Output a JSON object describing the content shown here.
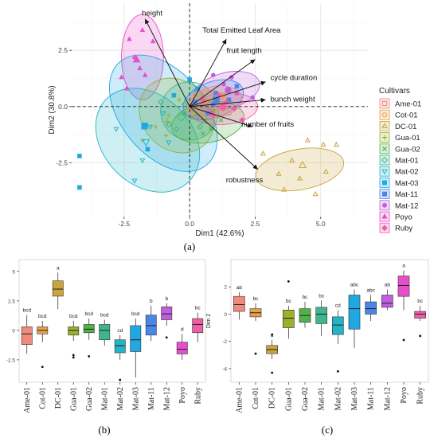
{
  "chart_data": [
    {
      "panel_label": "(a)",
      "type": "scatter",
      "title": "",
      "xlabel": "Dim1 (42.6%)",
      "ylabel": "Dim2 (30.8%)",
      "xlim": [
        -4.5,
        6.8
      ],
      "ylim": [
        -4.9,
        4.6
      ],
      "xticks": [
        -2.5,
        0.0,
        2.5,
        5.0
      ],
      "yticks": [
        -2.5,
        0.0,
        2.5
      ],
      "grid": true,
      "legend": {
        "title": "Cultivars",
        "position": "right"
      },
      "cultivars": [
        {
          "name": "Ame-01",
          "color": "#f08a7e",
          "marker": "square-open",
          "points": [
            [
              0.5,
              0.3
            ],
            [
              1.8,
              0.6
            ],
            [
              0.9,
              -0.2
            ],
            [
              1.2,
              0.4
            ],
            [
              0.3,
              0.8
            ],
            [
              1.5,
              -0.3
            ]
          ]
        },
        {
          "name": "Cot-01",
          "color": "#e8a04a",
          "marker": "circle-open",
          "points": [
            [
              0.6,
              0.2
            ],
            [
              0.2,
              0.5
            ],
            [
              1.1,
              -0.1
            ],
            [
              0.4,
              -0.3
            ],
            [
              0.9,
              0.3
            ],
            [
              1.3,
              0.5
            ]
          ]
        },
        {
          "name": "DC-01",
          "color": "#c9a53b",
          "marker": "triangle-open",
          "points": [
            [
              3.9,
              -2.4
            ],
            [
              4.5,
              -1.5
            ],
            [
              5.2,
              -2.9
            ],
            [
              4.2,
              -3.2
            ],
            [
              3.4,
              -3.0
            ],
            [
              5.1,
              -1.7
            ],
            [
              4.8,
              -3.9
            ],
            [
              2.8,
              -2.1
            ],
            [
              5.6,
              -1.7
            ],
            [
              3.6,
              -3.7
            ]
          ]
        },
        {
          "name": "Gua-01",
          "color": "#9cb02e",
          "marker": "plus",
          "points": [
            [
              -1.8,
              -1.5
            ],
            [
              -0.8,
              -0.4
            ],
            [
              -1.3,
              -0.9
            ],
            [
              -0.4,
              0.3
            ],
            [
              0.1,
              -0.2
            ],
            [
              -0.9,
              -1.3
            ]
          ]
        },
        {
          "name": "Gua-02",
          "color": "#52b24a",
          "marker": "x",
          "points": [
            [
              0.8,
              -1.0
            ],
            [
              0.1,
              -0.5
            ],
            [
              1.2,
              -0.6
            ],
            [
              0.5,
              -1.2
            ],
            [
              -0.2,
              -0.3
            ],
            [
              0.9,
              -0.2
            ]
          ]
        },
        {
          "name": "Mat-01",
          "color": "#3fb58e",
          "marker": "diamond-open",
          "points": [
            [
              -0.8,
              -0.8
            ],
            [
              -1.1,
              0.2
            ],
            [
              0.3,
              -0.4
            ],
            [
              -0.5,
              -1.0
            ],
            [
              -0.2,
              0.1
            ],
            [
              0.4,
              -0.9
            ]
          ]
        },
        {
          "name": "Mat-02",
          "color": "#22b5c9",
          "marker": "triangle-down-open",
          "points": [
            [
              -2.1,
              -3.3
            ],
            [
              -1.5,
              -0.9
            ],
            [
              -2.8,
              -1.0
            ],
            [
              -1.0,
              -0.3
            ],
            [
              -0.8,
              -1.6
            ],
            [
              -1.8,
              -2.4
            ]
          ]
        },
        {
          "name": "Mat-03",
          "color": "#20a8e2",
          "marker": "square",
          "points": [
            [
              -4.2,
              -2.2
            ],
            [
              -4.2,
              -3.6
            ],
            [
              0.0,
              1.2
            ],
            [
              0.3,
              0.8
            ],
            [
              -0.6,
              0.5
            ],
            [
              -1.6,
              -1.9
            ]
          ]
        },
        {
          "name": "Mat-11",
          "color": "#4a86e8",
          "marker": "square",
          "points": [
            [
              1.0,
              0.6
            ],
            [
              0.7,
              -0.3
            ],
            [
              1.5,
              0.3
            ],
            [
              0.2,
              0.2
            ],
            [
              1.8,
              0.9
            ],
            [
              0.9,
              0.1
            ]
          ]
        },
        {
          "name": "Mat-12",
          "color": "#c05ee0",
          "marker": "circle",
          "points": [
            [
              1.3,
              1.0
            ],
            [
              0.9,
              1.4
            ],
            [
              1.8,
              0.6
            ],
            [
              2.4,
              0.4
            ],
            [
              0.8,
              -0.3
            ],
            [
              1.6,
              1.3
            ]
          ]
        },
        {
          "name": "Poyo",
          "color": "#e64fc9",
          "marker": "triangle",
          "points": [
            [
              -2.3,
              3.0
            ],
            [
              -1.7,
              1.4
            ],
            [
              -2.1,
              2.2
            ],
            [
              -1.4,
              2.9
            ],
            [
              -2.6,
              1.3
            ],
            [
              -2.4,
              0.8
            ],
            [
              -1.8,
              3.4
            ],
            [
              -1.9,
              1.7
            ]
          ]
        },
        {
          "name": "Ruby",
          "color": "#ef5fa8",
          "marker": "diamond",
          "points": [
            [
              1.4,
              0.2
            ],
            [
              0.9,
              -0.4
            ],
            [
              2.0,
              -0.6
            ],
            [
              1.1,
              0.5
            ],
            [
              0.5,
              0.3
            ],
            [
              1.7,
              -0.1
            ]
          ]
        }
      ],
      "ellipses": [
        {
          "cultivar": "Poyo",
          "cx": -1.8,
          "cy": 2.2,
          "rx": 0.8,
          "ry": 1.9,
          "angle": 0
        },
        {
          "cultivar": "DC-01",
          "cx": 4.2,
          "cy": -2.8,
          "rx": 1.7,
          "ry": 0.9,
          "angle": -10
        },
        {
          "cultivar": "Mat-02",
          "cx": -1.6,
          "cy": -1.5,
          "rx": 1.7,
          "ry": 2.6,
          "angle": -45
        },
        {
          "cultivar": "Mat-03",
          "cx": -1.0,
          "cy": -0.3,
          "rx": 1.6,
          "ry": 3.0,
          "angle": -40
        },
        {
          "cultivar": "Gua-01",
          "cx": -0.5,
          "cy": -0.4,
          "rx": 1.3,
          "ry": 1.8,
          "angle": -45
        },
        {
          "cultivar": "Mat-01",
          "cx": 0.0,
          "cy": -0.2,
          "rx": 1.1,
          "ry": 1.3,
          "angle": -40
        },
        {
          "cultivar": "Gua-02",
          "cx": 0.7,
          "cy": -0.7,
          "rx": 1.4,
          "ry": 0.9,
          "angle": -10
        },
        {
          "cultivar": "Mat-12",
          "cx": 1.4,
          "cy": 0.7,
          "rx": 1.3,
          "ry": 0.8,
          "angle": -15
        },
        {
          "cultivar": "Ruby",
          "cx": 1.3,
          "cy": -0.1,
          "rx": 1.3,
          "ry": 0.7,
          "angle": -5
        },
        {
          "cultivar": "Mat-11",
          "cx": 0.9,
          "cy": 0.3,
          "rx": 1.2,
          "ry": 0.8,
          "angle": -20
        },
        {
          "cultivar": "Ame-01",
          "cx": 1.0,
          "cy": 0.2,
          "rx": 1.0,
          "ry": 0.7,
          "angle": -10
        },
        {
          "cultivar": "Cot-01",
          "cx": 0.7,
          "cy": 0.1,
          "rx": 0.8,
          "ry": 0.6,
          "angle": -10
        }
      ],
      "vectors": [
        {
          "label": "height",
          "x": -1.7,
          "y": 3.9
        },
        {
          "label": "Total Emitted Leaf Area",
          "x": 1.4,
          "y": 3.0
        },
        {
          "label": "fruit length",
          "x": 2.5,
          "y": 2.1
        },
        {
          "label": "cycle duration",
          "x": 2.9,
          "y": 1.1
        },
        {
          "label": "bunch weight",
          "x": 2.9,
          "y": 0.3
        },
        {
          "label": "number of fruits",
          "x": 2.4,
          "y": -0.9
        },
        {
          "label": "robustness",
          "x": 2.6,
          "y": -2.8
        }
      ]
    },
    {
      "panel_label": "(b)",
      "type": "box",
      "ylabel": "Dim 1",
      "ylim": [
        -4.4,
        6.0
      ],
      "yticks": [
        -2.5,
        0.0,
        2.5,
        5.0
      ],
      "categories": [
        "Ame-01",
        "Cot-01",
        "DC-01",
        "Gua-01",
        "Gua-02",
        "Mat-01",
        "Mat-02",
        "Mat-03",
        "Mat-11",
        "Mat-12",
        "Poyo",
        "Ruby"
      ],
      "letters": [
        "bcd",
        "bcd",
        "a",
        "bcd",
        "bcd",
        "bcd",
        "cd",
        "bcd",
        "b",
        "b",
        "d",
        "bc"
      ],
      "boxes": [
        {
          "q1": -1.2,
          "median": -0.3,
          "q3": 0.3,
          "lo": -2.0,
          "hi": 1.3,
          "outliers": []
        },
        {
          "q1": -0.3,
          "median": 0.0,
          "q3": 0.3,
          "lo": -1.0,
          "hi": 0.8,
          "outliers": [
            -3.1
          ]
        },
        {
          "q1": 2.9,
          "median": 3.5,
          "q3": 4.2,
          "lo": 1.8,
          "hi": 4.9,
          "outliers": []
        },
        {
          "q1": -0.4,
          "median": 0.0,
          "q3": 0.3,
          "lo": -0.9,
          "hi": 0.8,
          "outliers": [
            -2.1,
            -2.3
          ]
        },
        {
          "q1": -0.2,
          "median": 0.1,
          "q3": 0.5,
          "lo": -0.8,
          "hi": 1.0,
          "outliers": [
            -2.2
          ]
        },
        {
          "q1": -0.8,
          "median": 0.0,
          "q3": 0.5,
          "lo": -1.3,
          "hi": 0.9,
          "outliers": []
        },
        {
          "q1": -1.9,
          "median": -1.3,
          "q3": -0.8,
          "lo": -2.5,
          "hi": -0.4,
          "outliers": [
            -4.2
          ]
        },
        {
          "q1": -1.8,
          "median": -0.8,
          "q3": 0.4,
          "lo": -4.0,
          "hi": 1.0,
          "outliers": []
        },
        {
          "q1": -0.4,
          "median": 0.4,
          "q3": 1.3,
          "lo": -0.9,
          "hi": 2.1,
          "outliers": []
        },
        {
          "q1": 0.9,
          "median": 1.4,
          "q3": 2.0,
          "lo": 0.4,
          "hi": 2.3,
          "outliers": [
            -0.6
          ]
        },
        {
          "q1": -2.0,
          "median": -1.6,
          "q3": -1.0,
          "lo": -2.5,
          "hi": -0.3,
          "outliers": []
        },
        {
          "q1": -0.2,
          "median": 0.5,
          "q3": 1.0,
          "lo": -1.0,
          "hi": 1.5,
          "outliers": []
        }
      ]
    },
    {
      "panel_label": "(c)",
      "type": "box",
      "ylabel": "Dim 2",
      "ylim": [
        -5.0,
        4.0
      ],
      "yticks": [
        -4,
        -2,
        0,
        2
      ],
      "categories": [
        "Ame-01",
        "Cot-01",
        "DC-01",
        "Gua-01",
        "Gua-02",
        "Mat-01",
        "Mat-02",
        "Mat-03",
        "Mat-11",
        "Mat-12",
        "Poyo",
        "Ruby"
      ],
      "letters": [
        "ab",
        "bc",
        "d",
        "bc",
        "bc",
        "bc",
        "cd",
        "abc",
        "abc",
        "ab",
        "a",
        "bc"
      ],
      "boxes": [
        {
          "q1": 0.2,
          "median": 0.7,
          "q3": 1.3,
          "lo": -0.4,
          "hi": 1.6,
          "outliers": []
        },
        {
          "q1": -0.2,
          "median": 0.1,
          "q3": 0.4,
          "lo": -0.5,
          "hi": 0.8,
          "outliers": [
            -2.9
          ]
        },
        {
          "q1": -2.9,
          "median": -2.6,
          "q3": -2.3,
          "lo": -3.3,
          "hi": -1.9,
          "outliers": [
            -4.3,
            -1.5
          ]
        },
        {
          "q1": -1.0,
          "median": -0.3,
          "q3": 0.3,
          "lo": -1.8,
          "hi": 0.6,
          "outliers": [
            2.4
          ]
        },
        {
          "q1": -0.6,
          "median": -0.1,
          "q3": 0.4,
          "lo": -1.0,
          "hi": 0.9,
          "outliers": []
        },
        {
          "q1": -0.7,
          "median": 0.0,
          "q3": 0.5,
          "lo": -1.6,
          "hi": 1.0,
          "outliers": []
        },
        {
          "q1": -1.5,
          "median": -0.8,
          "q3": -0.2,
          "lo": -2.2,
          "hi": 0.3,
          "outliers": [
            -4.2
          ]
        },
        {
          "q1": -1.1,
          "median": 0.4,
          "q3": 1.4,
          "lo": -2.5,
          "hi": 1.8,
          "outliers": []
        },
        {
          "q1": 0.0,
          "median": 0.4,
          "q3": 0.9,
          "lo": -0.5,
          "hi": 1.4,
          "outliers": []
        },
        {
          "q1": 0.5,
          "median": 0.8,
          "q3": 1.4,
          "lo": 0.3,
          "hi": 1.8,
          "outliers": []
        },
        {
          "q1": 1.3,
          "median": 2.1,
          "q3": 2.8,
          "lo": 0.3,
          "hi": 3.2,
          "outliers": [
            -1.9
          ]
        },
        {
          "q1": -0.3,
          "median": 0.0,
          "q3": 0.2,
          "lo": -0.5,
          "hi": 0.6,
          "outliers": [
            -1.6
          ]
        }
      ]
    }
  ]
}
